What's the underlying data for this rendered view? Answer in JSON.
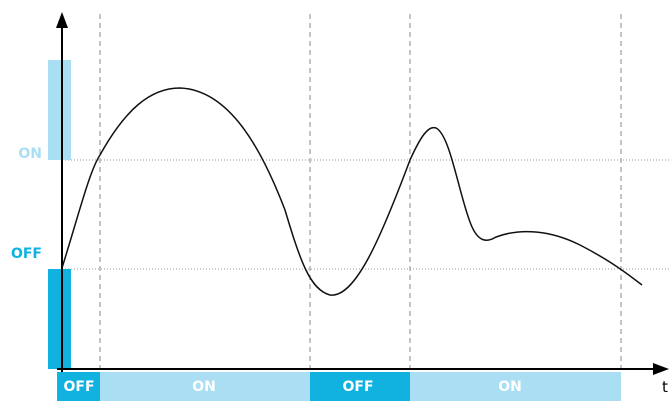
{
  "colors": {
    "on": "#a9def3",
    "off": "#12b2e0",
    "on_text": "#a9def3",
    "off_text": "#12b2e0",
    "axis": "#000000",
    "curve": "#111111",
    "guide": "#888888",
    "band_text": "#ffffff"
  },
  "y_axis": {
    "on_label": "ON",
    "off_label": "OFF"
  },
  "x_axis": {
    "label": "t"
  },
  "segments": [
    {
      "state": "off",
      "label": "OFF"
    },
    {
      "state": "on",
      "label": "ON"
    },
    {
      "state": "off",
      "label": "OFF"
    },
    {
      "state": "on",
      "label": "ON"
    }
  ]
}
